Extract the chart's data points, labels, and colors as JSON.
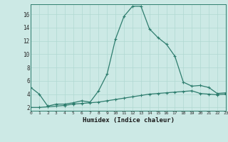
{
  "xlabel": "Humidex (Indice chaleur)",
  "x": [
    0,
    1,
    2,
    3,
    4,
    5,
    6,
    7,
    8,
    9,
    10,
    11,
    12,
    13,
    14,
    15,
    16,
    17,
    18,
    19,
    20,
    21,
    22,
    23
  ],
  "line1_y": [
    5.0,
    4.0,
    2.2,
    2.5,
    2.5,
    2.7,
    3.0,
    2.8,
    4.5,
    7.0,
    12.3,
    15.7,
    17.2,
    17.2,
    13.8,
    12.5,
    11.5,
    9.7,
    5.8,
    5.2,
    5.3,
    5.0,
    4.1,
    4.2
  ],
  "line2_y": [
    2.0,
    2.0,
    2.1,
    2.2,
    2.3,
    2.5,
    2.6,
    2.7,
    2.8,
    3.0,
    3.2,
    3.4,
    3.6,
    3.8,
    4.0,
    4.1,
    4.2,
    4.3,
    4.4,
    4.5,
    4.1,
    4.0,
    3.9,
    4.0
  ],
  "line_color": "#2e7d6e",
  "bg_color": "#cce9e5",
  "grid_color": "#b0d8d2",
  "ylim": [
    1.5,
    17.5
  ],
  "xlim": [
    0,
    23
  ],
  "yticks": [
    2,
    4,
    6,
    8,
    10,
    12,
    14,
    16
  ],
  "xticks": [
    0,
    1,
    2,
    3,
    4,
    5,
    6,
    7,
    8,
    9,
    10,
    11,
    12,
    13,
    14,
    15,
    16,
    17,
    18,
    19,
    20,
    21,
    22,
    23
  ],
  "marker": "+",
  "markersize": 3,
  "linewidth": 0.9
}
